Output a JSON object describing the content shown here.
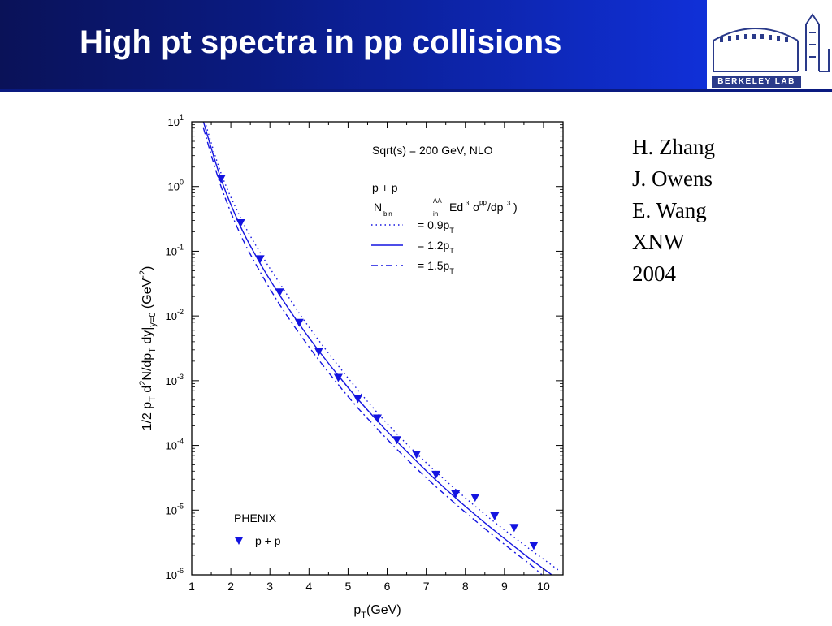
{
  "slide": {
    "title": "High pt spectra in pp collisions",
    "logo_text": "Berkeley Lab",
    "authors": [
      "H. Zhang",
      "J. Owens",
      "E. Wang",
      "XNW",
      "2004"
    ]
  },
  "colors": {
    "header_dark": "#0a1258",
    "header_light": "#1030d8",
    "series": "#1414e0"
  },
  "chart_data": {
    "type": "line",
    "title": "Sqrt(s) = 200 GeV, NLO",
    "xlabel": "p_T(GeV)",
    "ylabel": "1/2  p_T d^2N/dp_T dy|_y=0 (GeV^-2)",
    "xlim": [
      1,
      10.5
    ],
    "ylim_log10": [
      -6,
      1
    ],
    "y_scale": "log",
    "x_ticks": [
      "1",
      "2",
      "3",
      "4",
      "5",
      "6",
      "7",
      "8",
      "9",
      "10"
    ],
    "y_ticks": [
      {
        "base": "10",
        "exp": "1"
      },
      {
        "base": "10",
        "exp": "0"
      },
      {
        "base": "10",
        "exp": "-1"
      },
      {
        "base": "10",
        "exp": "-2"
      },
      {
        "base": "10",
        "exp": "-3"
      },
      {
        "base": "10",
        "exp": "-4"
      },
      {
        "base": "10",
        "exp": "-5"
      },
      {
        "base": "10",
        "exp": "-6"
      }
    ],
    "legend_theory": {
      "header": "p + p",
      "expr": "N_bin^AA  Ed^3 σ_in^pp/dp^3 )",
      "items": [
        "= 0.9p_T",
        "= 1.2p_T",
        "= 1.5p_T"
      ]
    },
    "legend_data": {
      "header": "PHENIX",
      "item": "p + p"
    },
    "series": [
      {
        "name": "= 0.9p_T",
        "style": "dotted",
        "x": [
          1.3,
          1.75,
          2.25,
          2.75,
          3.25,
          3.75,
          4.25,
          4.75,
          5.25,
          5.75,
          6.25,
          6.75,
          7.25,
          7.75,
          8.25,
          8.75,
          9.25,
          9.75,
          10.5
        ],
        "y": [
          12,
          1.6,
          0.33,
          0.095,
          0.032,
          0.011,
          0.0042,
          0.0017,
          0.00072,
          0.00032,
          0.00015,
          7.5e-05,
          3.9e-05,
          2.1e-05,
          1.15e-05,
          6.5e-06,
          3.8e-06,
          2.25e-06,
          1.05e-06
        ]
      },
      {
        "name": "= 1.2p_T",
        "style": "solid",
        "x": [
          1.3,
          1.75,
          2.25,
          2.75,
          3.25,
          3.75,
          4.25,
          4.75,
          5.25,
          5.75,
          6.25,
          6.75,
          7.25,
          7.75,
          8.25,
          8.75,
          9.25,
          9.75,
          10.5
        ],
        "y": [
          10,
          1.3,
          0.24,
          0.065,
          0.021,
          0.0075,
          0.0029,
          0.0012,
          0.00052,
          0.00024,
          0.000115,
          5.7e-05,
          2.9e-05,
          1.55e-05,
          8.5e-06,
          4.8e-06,
          2.75e-06,
          1.6e-06,
          7.5e-07
        ]
      },
      {
        "name": "= 1.5p_T",
        "style": "dashdot",
        "x": [
          1.3,
          1.75,
          2.25,
          2.75,
          3.25,
          3.75,
          4.25,
          4.75,
          5.25,
          5.75,
          6.25,
          6.75,
          7.25,
          7.75,
          8.25,
          8.75,
          9.25,
          9.75,
          10.5
        ],
        "y": [
          8,
          1.0,
          0.18,
          0.048,
          0.015,
          0.0054,
          0.0021,
          0.00087,
          0.00038,
          0.00018,
          8.7e-05,
          4.4e-05,
          2.3e-05,
          1.25e-05,
          6.9e-06,
          3.9e-06,
          2.25e-06,
          1.3e-06,
          5e-07
        ]
      },
      {
        "name": "p + p",
        "style": "markers",
        "x": [
          1.75,
          2.25,
          2.75,
          3.25,
          3.75,
          4.25,
          4.75,
          5.25,
          5.75,
          6.25,
          6.75,
          7.25,
          7.75,
          8.25,
          8.75,
          9.25,
          9.75
        ],
        "y": [
          1.3,
          0.27,
          0.075,
          0.023,
          0.0078,
          0.0028,
          0.0011,
          0.00052,
          0.00026,
          0.00012,
          7.2e-05,
          3.5e-05,
          1.75e-05,
          1.55e-05,
          8e-06,
          5.3e-06,
          2.8e-06
        ]
      }
    ]
  }
}
